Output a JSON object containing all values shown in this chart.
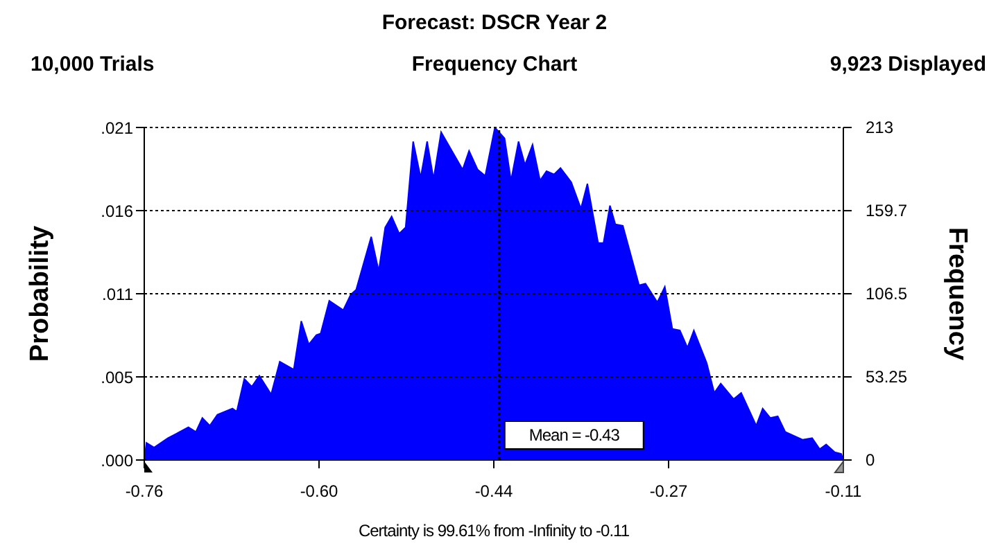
{
  "chart_data": {
    "type": "area",
    "title": "Forecast: DSCR Year 2",
    "subtitle": "Frequency Chart",
    "ylabel": "Probability",
    "y2label": "Frequency",
    "annotations": [
      "10,000 Trials",
      "9,923 Displayed",
      "Certainty is 99.61% from -Infinity to -0.11"
    ],
    "x": [
      -0.76,
      -0.758,
      -0.751,
      -0.738,
      -0.719,
      -0.712,
      -0.706,
      -0.699,
      -0.692,
      -0.678,
      -0.674,
      -0.667,
      -0.66,
      -0.653,
      -0.642,
      -0.634,
      -0.621,
      -0.614,
      -0.607,
      -0.6,
      -0.596,
      -0.588,
      -0.575,
      -0.568,
      -0.563,
      -0.549,
      -0.542,
      -0.536,
      -0.53,
      -0.523,
      -0.517,
      -0.51,
      -0.503,
      -0.497,
      -0.491,
      -0.484,
      -0.464,
      -0.458,
      -0.45,
      -0.443,
      -0.434,
      -0.425,
      -0.419,
      -0.412,
      -0.406,
      -0.399,
      -0.392,
      -0.386,
      -0.379,
      -0.373,
      -0.363,
      -0.354,
      -0.348,
      -0.338,
      -0.333,
      -0.327,
      -0.322,
      -0.315,
      -0.3,
      -0.294,
      -0.283,
      -0.276,
      -0.269,
      -0.262,
      -0.255,
      -0.249,
      -0.237,
      -0.23,
      -0.224,
      -0.212,
      -0.205,
      -0.191,
      -0.185,
      -0.178,
      -0.171,
      -0.164,
      -0.148,
      -0.139,
      -0.132,
      -0.126,
      -0.118,
      -0.112,
      -0.11
    ],
    "series": [
      {
        "color": "#0000ff",
        "axis": "y2",
        "values": [
          0,
          11,
          8,
          14,
          21,
          18,
          27,
          22,
          29,
          33,
          31,
          52,
          47,
          54,
          42,
          63,
          58,
          89,
          74,
          80,
          81,
          102,
          96,
          106,
          109,
          143,
          121,
          149,
          156,
          145,
          149,
          204,
          181,
          204,
          180,
          210,
          186,
          198,
          186,
          182,
          213,
          206,
          179,
          204,
          189,
          202,
          179,
          185,
          183,
          187,
          178,
          161,
          177,
          139,
          139,
          163,
          151,
          150,
          112,
          113,
          101,
          111,
          84,
          83,
          72,
          83,
          62,
          43,
          49,
          39,
          43,
          22,
          33,
          27,
          28,
          18,
          13,
          14,
          7,
          10,
          5,
          4,
          0
        ]
      }
    ],
    "xlim": [
      -0.76,
      -0.11
    ],
    "xticks": [
      -0.76,
      {
        "value": -0.5975,
        "label": "-0.60"
      },
      {
        "value": -0.435,
        "label": "-0.44"
      },
      {
        "value": -0.2725,
        "label": "-0.27"
      },
      -0.11
    ],
    "ylim": [
      0,
      0.0213
    ],
    "yticks": [
      {
        "value": 0,
        "label": ".000"
      },
      {
        "value": 0.005325,
        "label": ".005"
      },
      {
        "value": 0.01065,
        "label": ".011"
      },
      {
        "value": 0.015975,
        "label": ".016"
      },
      {
        "value": 0.0213,
        "label": ".021"
      }
    ],
    "y2lim": [
      0,
      213
    ],
    "y2ticks": [
      0,
      53.25,
      106.5,
      159.7,
      213
    ],
    "ref_lines": [
      {
        "axis": "x",
        "value": -0.43,
        "label": "Mean = -0.43",
        "line_style": "dotted"
      }
    ],
    "grid": "y"
  }
}
